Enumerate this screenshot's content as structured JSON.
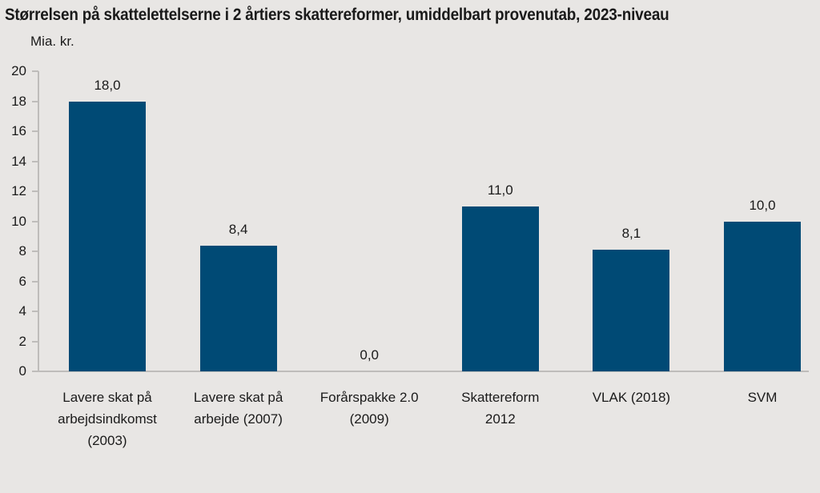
{
  "chart_data": {
    "type": "bar",
    "title": "Størrelsen på skattelettelserne i 2 årtiers skattereformer, umiddelbart provenutab, 2023-niveau",
    "unit_label": "Mia. kr.",
    "xlabel": "",
    "ylabel": "Mia. kr.",
    "categories": [
      "Lavere skat på arbejdsindkomst (2003)",
      "Lavere skat på arbejde (2007)",
      "Forårspakke 2.0 (2009)",
      "Skattereform 2012",
      "VLAK (2018)",
      "SVM"
    ],
    "category_lines": [
      [
        "Lavere skat på",
        "arbejdsindkomst",
        "(2003)"
      ],
      [
        "Lavere skat på",
        "arbejde (2007)"
      ],
      [
        "Forårspakke 2.0",
        "(2009)"
      ],
      [
        "Skattereform",
        "2012"
      ],
      [
        "VLAK (2018)"
      ],
      [
        "SVM"
      ]
    ],
    "values": [
      18.0,
      8.4,
      0.0,
      11.0,
      8.1,
      10.0
    ],
    "value_labels": [
      "18,0",
      "8,4",
      "0,0",
      "11,0",
      "8,1",
      "10,0"
    ],
    "ylim": [
      0,
      20
    ],
    "ytick_step": 2,
    "yticks": [
      0,
      2,
      4,
      6,
      8,
      10,
      12,
      14,
      16,
      18,
      20
    ],
    "grid": false,
    "legend": false,
    "bar_color": "#004A75",
    "background_color": "#E8E6E4",
    "axis_color": "#BEBCBA",
    "text_color": "#1A1A1A"
  }
}
